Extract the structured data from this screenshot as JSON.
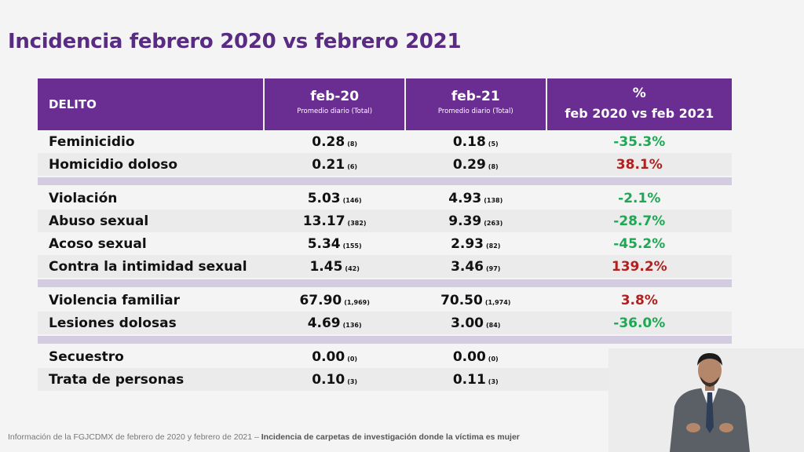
{
  "title": "Incidencia febrero 2020 vs febrero 2021",
  "headers": {
    "delito": "DELITO",
    "feb20": "feb-20",
    "feb20_sub": "Promedio diario (Total)",
    "feb21": "feb-21",
    "feb21_sub": "Promedio diario (Total)",
    "pct_sym": "%",
    "pct_label": "feb 2020 vs feb 2021"
  },
  "groups": [
    [
      {
        "delito": "Feminicidio",
        "v20": "0.28",
        "t20": "(8)",
        "v21": "0.18",
        "t21": "(5)",
        "pct": "-35.3%",
        "dir": "neg"
      },
      {
        "delito": "Homicidio doloso",
        "v20": "0.21",
        "t20": "(6)",
        "v21": "0.29",
        "t21": "(8)",
        "pct": "38.1%",
        "dir": "pos"
      }
    ],
    [
      {
        "delito": "Violación",
        "v20": "5.03",
        "t20": "(146)",
        "v21": "4.93",
        "t21": "(138)",
        "pct": "-2.1%",
        "dir": "neg"
      },
      {
        "delito": "Abuso sexual",
        "v20": "13.17",
        "t20": "(382)",
        "v21": "9.39",
        "t21": "(263)",
        "pct": "-28.7%",
        "dir": "neg"
      },
      {
        "delito": "Acoso sexual",
        "v20": "5.34",
        "t20": "(155)",
        "v21": "2.93",
        "t21": "(82)",
        "pct": "-45.2%",
        "dir": "neg"
      },
      {
        "delito": "Contra la intimidad sexual",
        "v20": "1.45",
        "t20": "(42)",
        "v21": "3.46",
        "t21": "(97)",
        "pct": "139.2%",
        "dir": "pos"
      }
    ],
    [
      {
        "delito": "Violencia familiar",
        "v20": "67.90",
        "t20": "(1,969)",
        "v21": "70.50",
        "t21": "(1,974)",
        "pct": "3.8%",
        "dir": "pos"
      },
      {
        "delito": "Lesiones dolosas",
        "v20": "4.69",
        "t20": "(136)",
        "v21": "3.00",
        "t21": "(84)",
        "pct": "-36.0%",
        "dir": "neg"
      }
    ],
    [
      {
        "delito": "Secuestro",
        "v20": "0.00",
        "t20": "(0)",
        "v21": "0.00",
        "t21": "(0)",
        "pct": "",
        "dir": "neg"
      },
      {
        "delito": "Trata de personas",
        "v20": "0.10",
        "t20": "(3)",
        "v21": "0.11",
        "t21": "(3)",
        "pct": "",
        "dir": "neg"
      }
    ]
  ],
  "footer_normal": "Información de la FGJCDMX de febrero de 2020 y  febrero de 2021 – ",
  "footer_bold": "Incidencia de carpetas de investigación  donde la víctima es mujer",
  "colors": {
    "accent": "#6a2d91",
    "title": "#5a2b82",
    "decrease": "#1ea854",
    "increase": "#b0201e"
  }
}
